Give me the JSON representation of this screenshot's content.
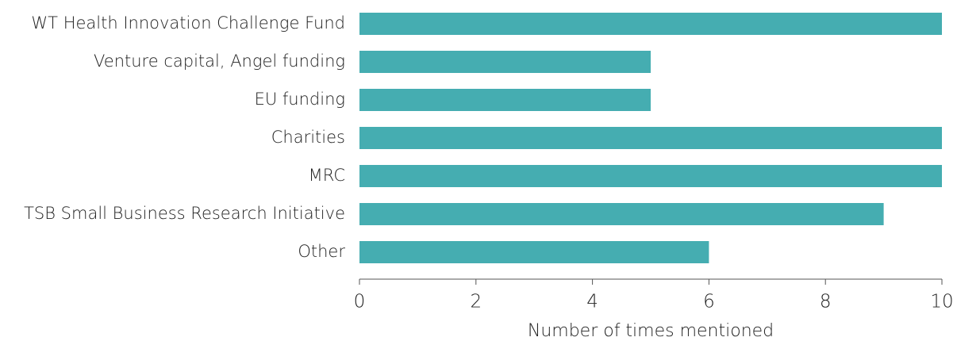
{
  "chart_data": {
    "type": "bar",
    "orientation": "horizontal",
    "categories": [
      "WT Health Innovation Challenge Fund",
      "Venture capital, Angel funding",
      "EU funding",
      "Charities",
      "MRC",
      "TSB Small Business Research Initiative",
      "Other"
    ],
    "values": [
      10,
      5,
      5,
      10,
      10,
      9,
      6
    ],
    "color": "#45adb1",
    "xlabel": "Number of times mentioned",
    "xlim": [
      0,
      10
    ],
    "xticks": [
      0,
      2,
      4,
      6,
      8,
      10
    ],
    "grid": false
  }
}
